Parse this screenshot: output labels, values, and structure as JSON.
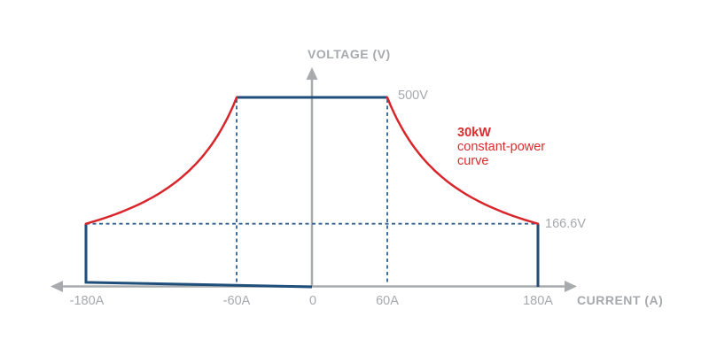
{
  "chart_data": {
    "type": "line",
    "xlabel": "CURRENT (A)",
    "ylabel": "VOLTAGE (V)",
    "x_ticks": [
      {
        "value": -180,
        "label": "-180A"
      },
      {
        "value": -60,
        "label": "-60A"
      },
      {
        "value": 0,
        "label": "0"
      },
      {
        "value": 60,
        "label": "60A"
      },
      {
        "value": 180,
        "label": "180A"
      }
    ],
    "xlim": [
      -210,
      210
    ],
    "ylim": [
      0,
      560
    ],
    "grid": false,
    "constant_power_kW": 30,
    "annotations": {
      "v_max": {
        "value": 500,
        "label": "500V"
      },
      "v_knee": {
        "value": 166.6,
        "label": "166.6V"
      },
      "curve_label": {
        "line1": "30kW",
        "line2": "constant-power",
        "line3": "curve"
      }
    },
    "series": [
      {
        "name": "operating-envelope",
        "color": "#1e4e79",
        "segments": [
          [
            [
              -60,
              500
            ],
            [
              60,
              500
            ]
          ],
          [
            [
              180,
              166.6
            ],
            [
              180,
              0
            ]
          ],
          [
            [
              -180,
              166.6
            ],
            [
              -180,
              12
            ],
            [
              0,
              0
            ]
          ]
        ]
      },
      {
        "name": "constant-power-curve",
        "color": "#d8262c",
        "equation": "V = 30000 / |I|",
        "i_range": [
          60,
          180
        ],
        "v_at_knee": 500,
        "v_at_max_current": 166.6
      }
    ],
    "guides": {
      "color": "#33628f",
      "h_voltage": 166.6,
      "h_i_range": [
        -180,
        180
      ],
      "v_currents": [
        -60,
        60
      ]
    },
    "style": {
      "axis_color": "#a8abae",
      "label_color": "#a6a9ad",
      "annotation_red": "#dd2b2e"
    }
  }
}
